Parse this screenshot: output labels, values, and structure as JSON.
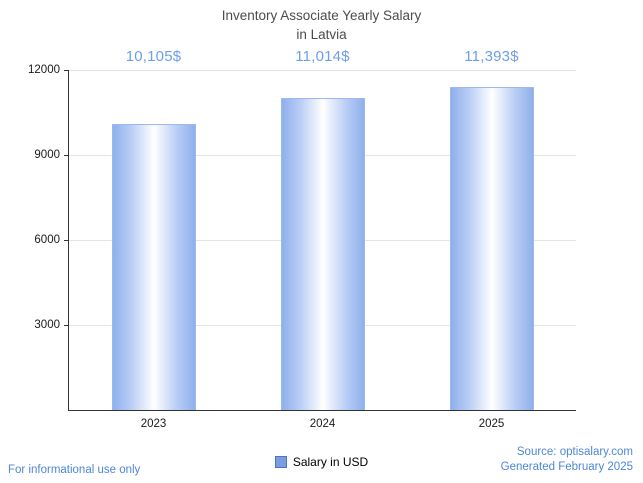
{
  "title": {
    "line1": "Inventory Associate Yearly Salary",
    "line2": "in Latvia"
  },
  "chart_data": {
    "type": "bar",
    "title": "Inventory Associate Yearly Salary in Latvia",
    "categories": [
      "2023",
      "2024",
      "2025"
    ],
    "values": [
      10105,
      11014,
      11393
    ],
    "value_labels": [
      "10,105$",
      "11,014$",
      "11,393$"
    ],
    "series_name": "Salary in USD",
    "xlabel": "",
    "ylabel": "",
    "ylim": [
      0,
      12000
    ],
    "yticks": [
      3000,
      6000,
      9000,
      12000
    ],
    "grid": true,
    "legend_position": "bottom",
    "bar_edge_color": "#8fb0ec",
    "bar_center_color": "#ffffff",
    "value_label_color": "#6d9eeb",
    "legend_swatch_color": "#7b9ce0"
  },
  "legend": {
    "label": "Salary in USD"
  },
  "footer": {
    "left": "For informational use only",
    "source": "Source: optisalary.com",
    "generated": "Generated February 2025"
  }
}
